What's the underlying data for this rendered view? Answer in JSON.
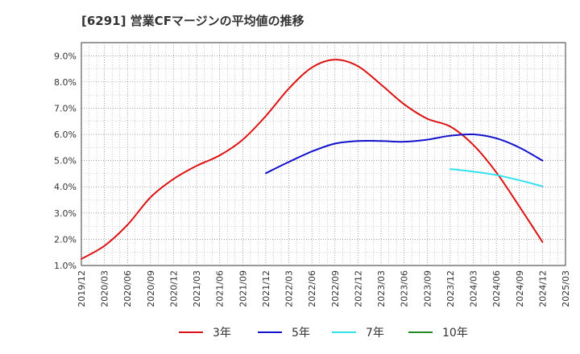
{
  "chart_data": {
    "type": "line",
    "title": "[6291]  営業CFマージンの平均値の推移",
    "xlabel": "",
    "ylabel": "",
    "y_tick_labels": [
      "1.0%",
      "2.0%",
      "3.0%",
      "4.0%",
      "5.0%",
      "6.0%",
      "7.0%",
      "8.0%",
      "9.0%"
    ],
    "y_tick_values": [
      1,
      2,
      3,
      4,
      5,
      6,
      7,
      8,
      9
    ],
    "ylim": [
      1.0,
      9.5
    ],
    "x_tick_labels": [
      "2019/12",
      "2020/03",
      "2020/06",
      "2020/09",
      "2020/12",
      "2021/03",
      "2021/06",
      "2021/09",
      "2021/12",
      "2022/03",
      "2022/06",
      "2022/09",
      "2022/12",
      "2023/03",
      "2023/06",
      "2023/09",
      "2023/12",
      "2024/03",
      "2024/06",
      "2024/09",
      "2024/12",
      "2025/03"
    ],
    "grid": true,
    "legend_position": "bottom",
    "series": [
      {
        "name": "3年",
        "color": "#dd1111",
        "points": [
          [
            0,
            1.25
          ],
          [
            1,
            1.75
          ],
          [
            2,
            2.55
          ],
          [
            3,
            3.6
          ],
          [
            4,
            4.3
          ],
          [
            5,
            4.8
          ],
          [
            6,
            5.2
          ],
          [
            7,
            5.8
          ],
          [
            8,
            6.7
          ],
          [
            9,
            7.75
          ],
          [
            10,
            8.55
          ],
          [
            11,
            8.85
          ],
          [
            12,
            8.6
          ],
          [
            13,
            7.9
          ],
          [
            14,
            7.15
          ],
          [
            15,
            6.6
          ],
          [
            16,
            6.3
          ],
          [
            17,
            5.6
          ],
          [
            18,
            4.55
          ],
          [
            19,
            3.25
          ],
          [
            20,
            1.9
          ]
        ]
      },
      {
        "name": "5年",
        "color": "#1111cc",
        "points": [
          [
            8,
            4.52
          ],
          [
            9,
            4.95
          ],
          [
            10,
            5.35
          ],
          [
            11,
            5.65
          ],
          [
            12,
            5.75
          ],
          [
            13,
            5.75
          ],
          [
            14,
            5.72
          ],
          [
            15,
            5.8
          ],
          [
            16,
            5.95
          ],
          [
            17,
            6.0
          ],
          [
            18,
            5.85
          ],
          [
            19,
            5.5
          ],
          [
            20,
            5.0
          ]
        ]
      },
      {
        "name": "7年",
        "color": "#33e0ee",
        "points": [
          [
            16,
            4.68
          ],
          [
            17,
            4.58
          ],
          [
            18,
            4.45
          ],
          [
            19,
            4.25
          ],
          [
            20,
            4.02
          ]
        ]
      },
      {
        "name": "10年",
        "color": "#228822",
        "points": []
      }
    ]
  }
}
